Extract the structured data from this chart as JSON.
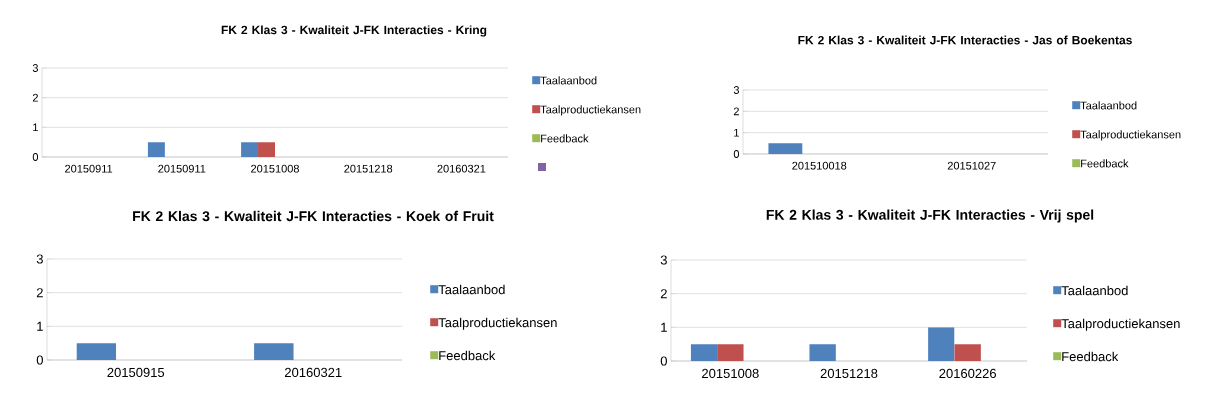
{
  "chart_data": [
    {
      "type": "bar",
      "title": "FK 2 Klas 3 - Kwaliteit J-FK Interacties - Kring",
      "categories": [
        "20150911",
        "20150911",
        "20151008",
        "20151218",
        "20160321"
      ],
      "series": [
        {
          "name": "Taalaanbod",
          "color": "#4f81bd",
          "values": [
            0,
            0.5,
            0.5,
            0,
            0
          ]
        },
        {
          "name": "Taalproductiekansen",
          "color": "#c0504d",
          "values": [
            0,
            0,
            0.5,
            0,
            0
          ]
        },
        {
          "name": "Feedback",
          "color": "#9bbb59",
          "values": [
            0,
            0,
            0,
            0,
            0
          ]
        },
        {
          "color": "#8064a2",
          "values": [
            0,
            0,
            0,
            0,
            0
          ]
        }
      ],
      "ylim": [
        0,
        3
      ],
      "yticks": [
        0,
        1,
        2,
        3
      ],
      "grid": "y",
      "legend": "right"
    },
    {
      "type": "bar",
      "title": "FK 2 Klas 3 - Kwaliteit J-FK Interacties - Jas of Boekentas",
      "categories": [
        "201510018",
        "20151027"
      ],
      "series": [
        {
          "name": "Taalaanbod",
          "color": "#4f81bd",
          "values": [
            0.5,
            0
          ]
        },
        {
          "name": "Taalproductiekansen",
          "color": "#c0504d",
          "values": [
            0,
            0
          ]
        },
        {
          "name": "Feedback",
          "color": "#9bbb59",
          "values": [
            0,
            0
          ]
        }
      ],
      "ylim": [
        0,
        3
      ],
      "yticks": [
        0,
        1,
        2,
        3
      ],
      "grid": "y",
      "legend": "right"
    },
    {
      "type": "bar",
      "title": "FK 2 Klas 3 - Kwaliteit J-FK Interacties - Koek of Fruit",
      "categories": [
        "20150915",
        "20160321"
      ],
      "series": [
        {
          "name": "Taalaanbod",
          "color": "#4f81bd",
          "values": [
            0.5,
            0.5
          ]
        },
        {
          "name": "Taalproductiekansen",
          "color": "#c0504d",
          "values": [
            0,
            0
          ]
        },
        {
          "name": "Feedback",
          "color": "#9bbb59",
          "values": [
            0,
            0
          ]
        }
      ],
      "ylim": [
        0,
        3
      ],
      "yticks": [
        0,
        1,
        2,
        3
      ],
      "grid": "y",
      "legend": "right"
    },
    {
      "type": "bar",
      "title": "FK 2 Klas 3 - Kwaliteit J-FK Interacties - Vrij spel",
      "categories": [
        "20151008",
        "20151218",
        "20160226"
      ],
      "series": [
        {
          "name": "Taalaanbod",
          "color": "#4f81bd",
          "values": [
            0.5,
            0.5,
            1
          ]
        },
        {
          "name": "Taalproductiekansen",
          "color": "#c0504d",
          "values": [
            0.5,
            0,
            0.5
          ]
        },
        {
          "name": "Feedback",
          "color": "#9bbb59",
          "values": [
            0,
            0,
            0
          ]
        }
      ],
      "ylim": [
        0,
        3
      ],
      "yticks": [
        0,
        1,
        2,
        3
      ],
      "grid": "y",
      "legend": "right"
    }
  ]
}
